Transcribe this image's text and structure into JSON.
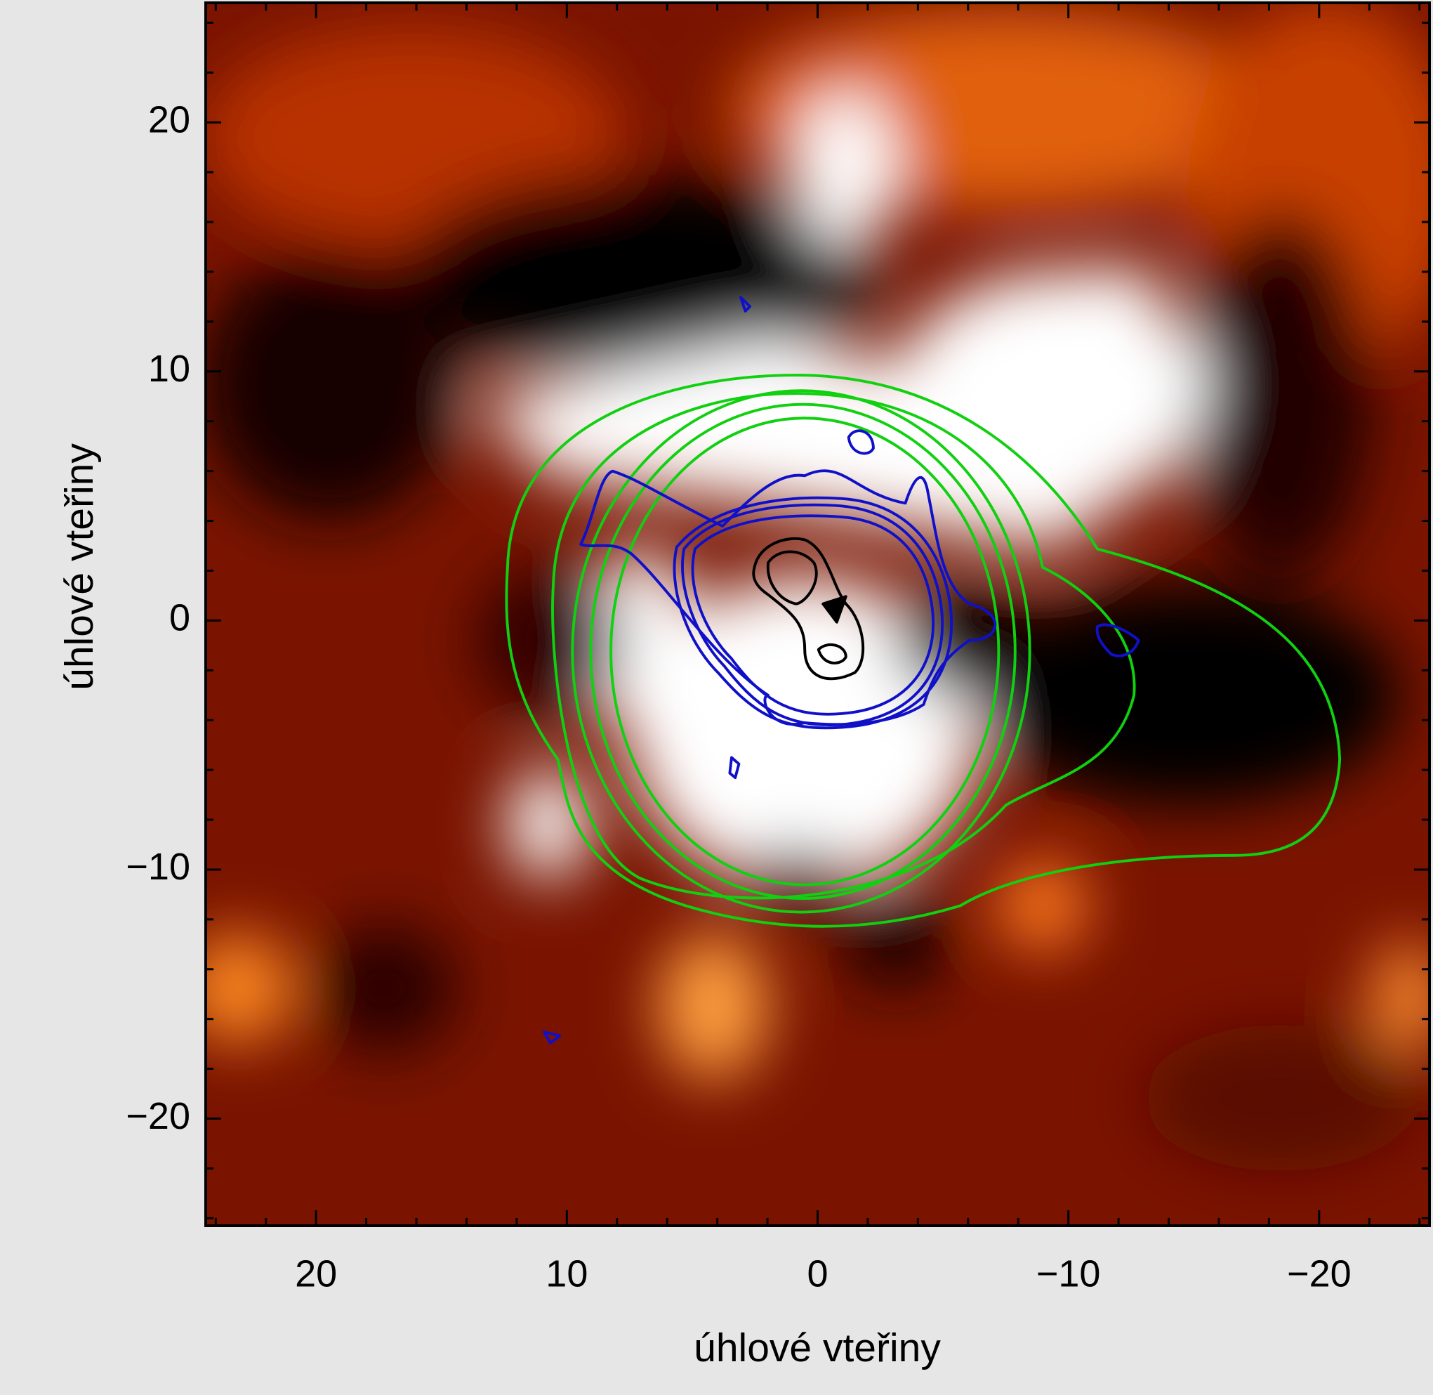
{
  "chart_data": {
    "type": "image",
    "xlabel": "úhlové vteřiny",
    "ylabel": "úhlové vteřiny",
    "xlim": [
      24.4,
      -24.4
    ],
    "ylim": [
      -24.3,
      24.8
    ],
    "xticks": [
      {
        "value": 20,
        "label": "20"
      },
      {
        "value": 10,
        "label": "10"
      },
      0,
      {
        "value": -10,
        "label": "−10"
      },
      {
        "value": -20,
        "label": "−20"
      }
    ],
    "yticks": [
      {
        "value": -20,
        "label": "−20"
      },
      {
        "value": -10,
        "label": "−10"
      },
      0,
      {
        "value": 10,
        "label": "10"
      },
      {
        "value": 20,
        "label": "20"
      }
    ],
    "xminorticks": [
      24,
      22,
      18,
      16,
      14,
      12,
      8,
      6,
      4,
      2,
      -2,
      -4,
      -6,
      -8,
      -12,
      -14,
      -16,
      -18,
      -22,
      -24
    ],
    "yminorticks": [
      -24,
      -22,
      -18,
      -16,
      -14,
      -12,
      -8,
      -6,
      -4,
      -2,
      2,
      4,
      6,
      8,
      12,
      14,
      16,
      18,
      22,
      24
    ]
  }
}
